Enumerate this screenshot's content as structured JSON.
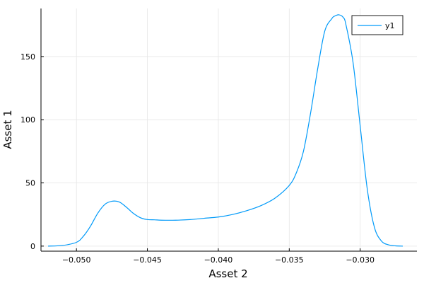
{
  "chart_data": {
    "type": "line",
    "xlabel": "Asset 2",
    "ylabel": "Asset 1",
    "xlim": [
      -0.0525,
      -0.026
    ],
    "ylim": [
      -4,
      188
    ],
    "xticks": [
      -0.05,
      -0.045,
      -0.04,
      -0.035,
      -0.03
    ],
    "xtick_labels": [
      "−0.050",
      "−0.045",
      "−0.040",
      "−0.035",
      "−0.030"
    ],
    "yticks": [
      0,
      50,
      100,
      150
    ],
    "ytick_labels": [
      "0",
      "50",
      "100",
      "150"
    ],
    "grid": true,
    "legend": {
      "position": "top-right",
      "entries": [
        "y1"
      ]
    },
    "series": [
      {
        "name": "y1",
        "color": "#009af9",
        "x": [
          -0.052,
          -0.051,
          -0.05,
          -0.0495,
          -0.049,
          -0.0485,
          -0.048,
          -0.0475,
          -0.047,
          -0.0465,
          -0.046,
          -0.0455,
          -0.045,
          -0.0445,
          -0.044,
          -0.043,
          -0.042,
          -0.041,
          -0.04,
          -0.039,
          -0.038,
          -0.037,
          -0.036,
          -0.035,
          -0.0345,
          -0.034,
          -0.0335,
          -0.033,
          -0.0325,
          -0.032,
          -0.0318,
          -0.0315,
          -0.0312,
          -0.031,
          -0.0305,
          -0.03,
          -0.0295,
          -0.029,
          -0.0285,
          -0.028,
          -0.0275,
          -0.027
        ],
        "y": [
          0,
          0.5,
          3,
          8,
          16,
          26,
          33,
          35.5,
          35,
          31,
          26,
          22.5,
          21,
          20.8,
          20.5,
          20.5,
          21,
          22,
          23,
          25,
          28,
          32,
          38,
          48,
          58,
          75,
          105,
          140,
          170,
          180,
          182,
          183,
          181,
          175,
          145,
          95,
          45,
          15,
          4,
          1,
          0.2,
          0
        ]
      }
    ]
  }
}
